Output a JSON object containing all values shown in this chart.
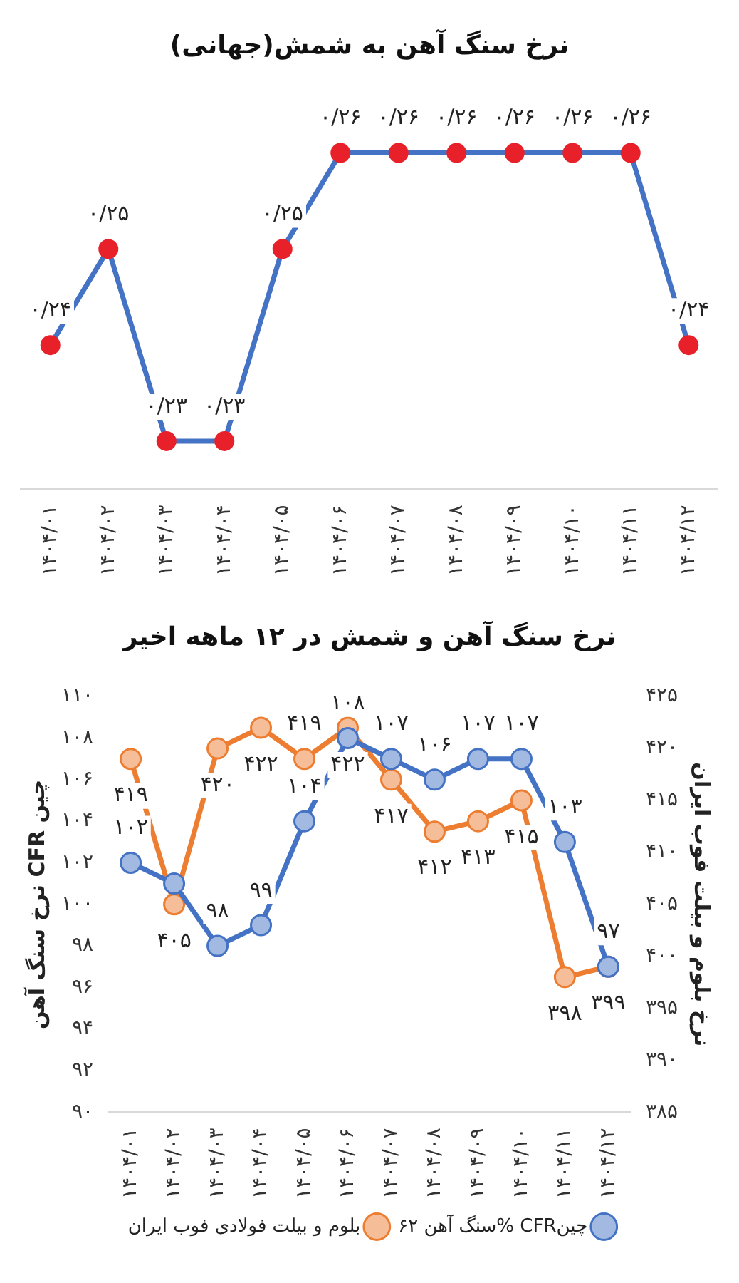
{
  "chart_data": [
    {
      "type": "line",
      "title": "نرخ سنگ آهن به شمش(جهانی)",
      "categories": [
        "۱۴۰۴/۰۱",
        "۱۴۰۴/۰۲",
        "۱۴۰۴/۰۳",
        "۱۴۰۴/۰۴",
        "۱۴۰۴/۰۵",
        "۱۴۰۴/۰۶",
        "۱۴۰۴/۰۷",
        "۱۴۰۴/۰۸",
        "۱۴۰۴/۰۹",
        "۱۴۰۴/۱۰",
        "۱۴۰۴/۱۱",
        "۱۴۰۴/۱۲"
      ],
      "series": [
        {
          "color": "#4472c4",
          "colors": [
            "#e8202a",
            "#e8202a",
            "#e8202a",
            "#e8202a",
            "#e8202a",
            "#e8202a",
            "#e8202a",
            "#e8202a",
            "#e8202a",
            "#e8202a",
            "#e8202a",
            "#e8202a"
          ],
          "values": [
            0.24,
            0.25,
            0.23,
            0.23,
            0.25,
            0.26,
            0.26,
            0.26,
            0.26,
            0.26,
            0.26,
            0.24
          ],
          "value_labels": [
            "۰/۲۴",
            "۰/۲۵",
            "۰/۲۳",
            "۰/۲۳",
            "۰/۲۵",
            "۰/۲۶",
            "۰/۲۶",
            "۰/۲۶",
            "۰/۲۶",
            "۰/۲۶",
            "۰/۲۶",
            "۰/۲۴"
          ]
        }
      ],
      "grid": false,
      "legend": false,
      "marker": "circle",
      "tick_labels": "x"
    },
    {
      "type": "line",
      "title": "نرخ سنگ آهن و شمش در ۱۲ ماهه اخیر",
      "categories": [
        "۱۴۰۴/۰۱",
        "۱۴۰۴/۰۲",
        "۱۴۰۴/۰۳",
        "۱۴۰۴/۰۴",
        "۱۴۰۴/۰۵",
        "۱۴۰۴/۰۶",
        "۱۴۰۴/۰۷",
        "۱۴۰۴/۰۸",
        "۱۴۰۴/۰۹",
        "۱۴۰۴/۱۰",
        "۱۴۰۴/۱۱",
        "۱۴۰۴/۱۲"
      ],
      "ylabel": "نرخ سنگ آهن CFR چین",
      "y2label": "نرخ بلوم و بیلت فوب ایران",
      "ylim": [
        90,
        110
      ],
      "yticks": [
        {
          "value": 90,
          "label": "۹۰"
        },
        {
          "value": 92,
          "label": "۹۲"
        },
        {
          "value": 94,
          "label": "۹۴"
        },
        {
          "value": 96,
          "label": "۹۶"
        },
        {
          "value": 98,
          "label": "۹۸"
        },
        {
          "value": 100,
          "label": "۱۰۰"
        },
        {
          "value": 102,
          "label": "۱۰۲"
        },
        {
          "value": 104,
          "label": "۱۰۴"
        },
        {
          "value": 106,
          "label": "۱۰۶"
        },
        {
          "value": 108,
          "label": "۱۰۸"
        },
        {
          "value": 110,
          "label": "۱۱۰"
        }
      ],
      "y2lim": [
        385,
        425
      ],
      "y2ticks": [
        {
          "value": 385,
          "label": "۳۸۵"
        },
        {
          "value": 390,
          "label": "۳۹۰"
        },
        {
          "value": 395,
          "label": "۳۹۵"
        },
        {
          "value": 400,
          "label": "۴۰۰"
        },
        {
          "value": 405,
          "label": "۴۰۵"
        },
        {
          "value": 410,
          "label": "۴۱۰"
        },
        {
          "value": 415,
          "label": "۴۱۵"
        },
        {
          "value": 420,
          "label": "۴۲۰"
        },
        {
          "value": 425,
          "label": "۴۲۵"
        }
      ],
      "series": [
        {
          "name": "سنگ آهن ۶۲% CFRچین",
          "color": "#4472c4",
          "values": [
            102,
            101,
            98,
            99,
            104,
            108,
            107,
            106,
            107,
            107,
            103,
            97
          ],
          "value_labels": [
            "۱۰۲",
            null,
            "۹۸",
            "۹۹",
            "۱۰۴",
            "۱۰۸",
            "۱۰۷",
            "۱۰۶",
            "۱۰۷",
            "۱۰۷",
            "۱۰۳",
            "۹۷"
          ]
        },
        {
          "name": "بلوم و بیلت فولادی فوب ایران",
          "color": "#ed7d31",
          "axis": "y2",
          "values": [
            419,
            405,
            420,
            422,
            419,
            422,
            417,
            412,
            413,
            415,
            398,
            399
          ],
          "value_labels": [
            "۴۱۹",
            "۴۰۵",
            "۴۲۰",
            "۴۲۲",
            "۴۱۹",
            "۴۲۲",
            "۴۱۷",
            "۴۱۲",
            "۴۱۳",
            "۴۱۵",
            "۳۹۸",
            "۳۹۹"
          ]
        }
      ],
      "grid": false,
      "legend": "bottom",
      "marker": "circle"
    }
  ]
}
